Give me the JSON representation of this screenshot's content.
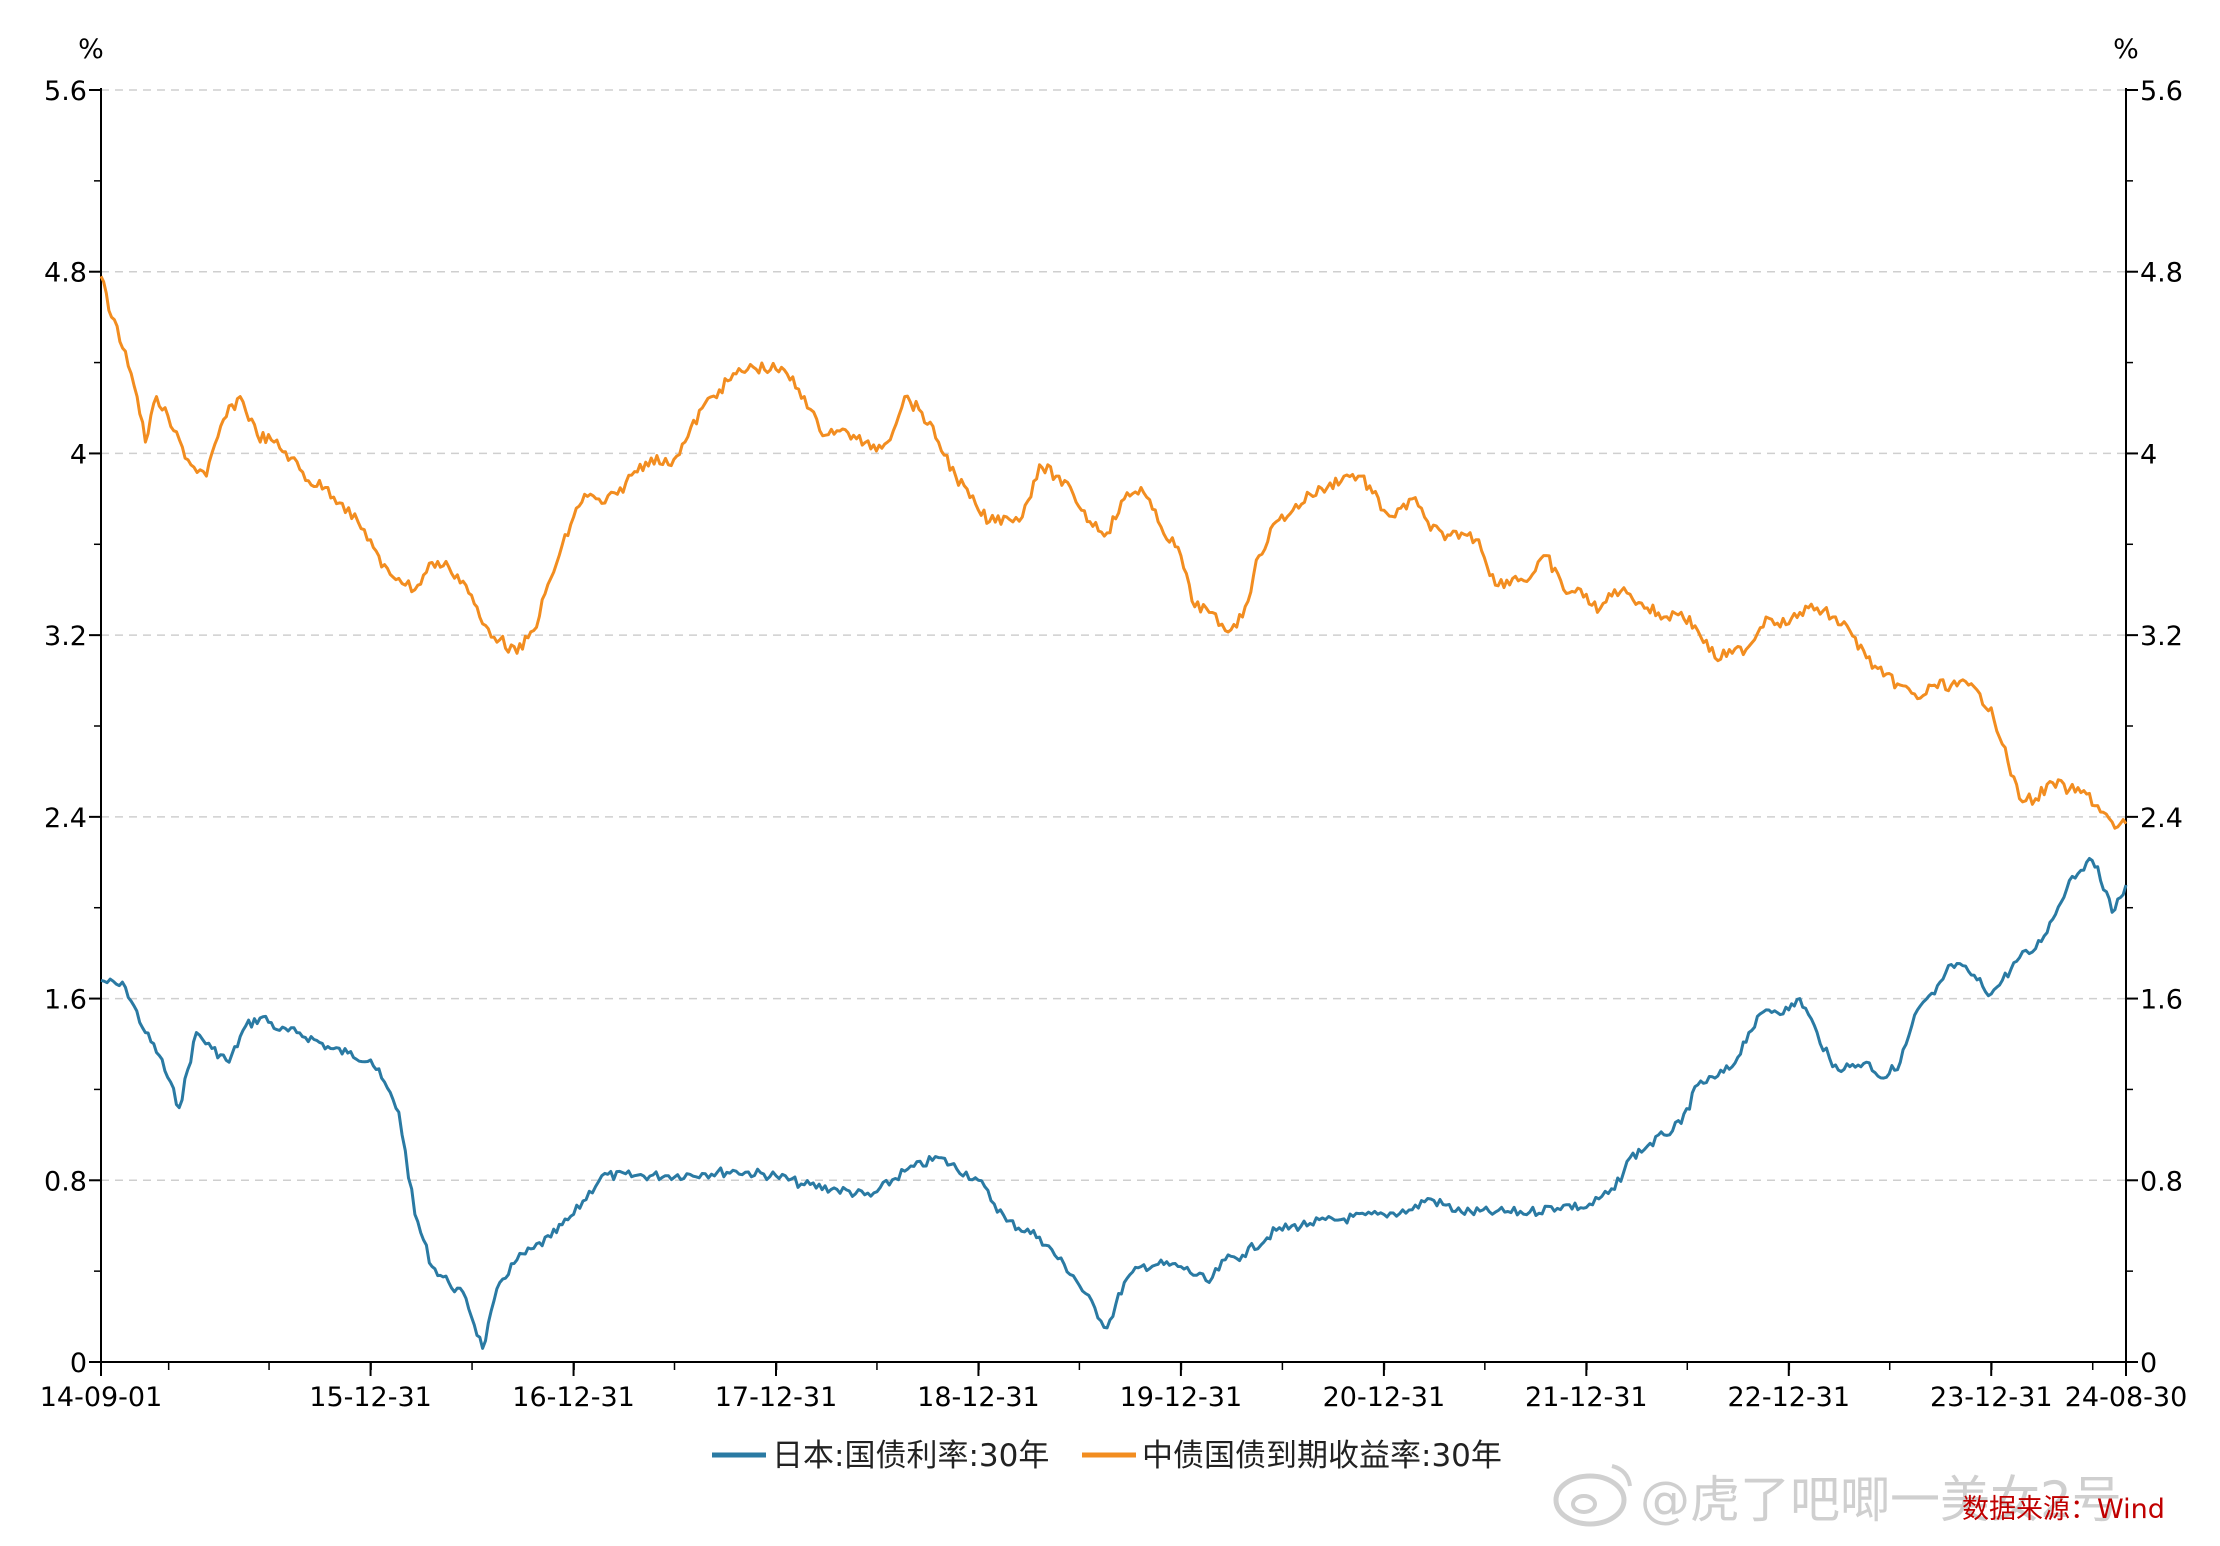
{
  "chart_data": {
    "type": "line",
    "y_unit_left": "%",
    "y_unit_right": "%",
    "ylim": [
      0,
      5.6
    ],
    "yticks": [
      0,
      0.8,
      1.6,
      2.4,
      3.2,
      4,
      4.8,
      5.6
    ],
    "ytick_labels": [
      "0",
      "0.8",
      "1.6",
      "2.4",
      "3.2",
      "4",
      "4.8",
      "5.6"
    ],
    "grid": true,
    "x_tick_labels": [
      "14-09-01",
      "15-12-31",
      "16-12-31",
      "17-12-31",
      "18-12-31",
      "19-12-31",
      "20-12-31",
      "21-12-31",
      "22-12-31",
      "23-12-31",
      "24-08-30"
    ],
    "x_tick_dates": [
      "2014-09-01",
      "2015-12-31",
      "2016-12-31",
      "2017-12-31",
      "2018-12-31",
      "2019-12-31",
      "2020-12-31",
      "2021-12-31",
      "2022-12-31",
      "2023-12-31",
      "2024-08-30"
    ],
    "xlim": [
      "2014-09-01",
      "2024-08-30"
    ],
    "legend_position": "bottom",
    "series": [
      {
        "name": "日本:国债利率:30年",
        "color": "#2a7aa3",
        "points": [
          [
            "2014-09-01",
            1.68
          ],
          [
            "2014-10-15",
            1.65
          ],
          [
            "2014-11-20",
            1.45
          ],
          [
            "2014-12-15",
            1.35
          ],
          [
            "2015-01-20",
            1.12
          ],
          [
            "2015-02-20",
            1.45
          ],
          [
            "2015-03-20",
            1.38
          ],
          [
            "2015-04-20",
            1.32
          ],
          [
            "2015-05-20",
            1.48
          ],
          [
            "2015-06-20",
            1.52
          ],
          [
            "2015-07-20",
            1.46
          ],
          [
            "2015-08-20",
            1.45
          ],
          [
            "2015-09-20",
            1.42
          ],
          [
            "2015-10-20",
            1.38
          ],
          [
            "2015-11-20",
            1.36
          ],
          [
            "2015-12-31",
            1.33
          ],
          [
            "2016-01-20",
            1.25
          ],
          [
            "2016-02-20",
            1.1
          ],
          [
            "2016-03-20",
            0.65
          ],
          [
            "2016-04-20",
            0.42
          ],
          [
            "2016-05-20",
            0.35
          ],
          [
            "2016-06-20",
            0.28
          ],
          [
            "2016-07-20",
            0.06
          ],
          [
            "2016-08-20",
            0.35
          ],
          [
            "2016-09-20",
            0.45
          ],
          [
            "2016-10-20",
            0.5
          ],
          [
            "2016-11-20",
            0.55
          ],
          [
            "2016-12-31",
            0.65
          ],
          [
            "2017-02-20",
            0.82
          ],
          [
            "2017-04-20",
            0.82
          ],
          [
            "2017-06-20",
            0.82
          ],
          [
            "2017-08-20",
            0.83
          ],
          [
            "2017-10-20",
            0.84
          ],
          [
            "2017-12-31",
            0.82
          ],
          [
            "2018-02-20",
            0.78
          ],
          [
            "2018-04-20",
            0.76
          ],
          [
            "2018-06-20",
            0.73
          ],
          [
            "2018-08-20",
            0.84
          ],
          [
            "2018-10-20",
            0.9
          ],
          [
            "2018-12-31",
            0.8
          ],
          [
            "2019-02-20",
            0.62
          ],
          [
            "2019-04-20",
            0.55
          ],
          [
            "2019-06-20",
            0.38
          ],
          [
            "2019-08-20",
            0.15
          ],
          [
            "2019-09-20",
            0.35
          ],
          [
            "2019-10-20",
            0.42
          ],
          [
            "2019-11-20",
            0.43
          ],
          [
            "2019-12-31",
            0.42
          ],
          [
            "2020-02-20",
            0.35
          ],
          [
            "2020-03-20",
            0.45
          ],
          [
            "2020-04-20",
            0.47
          ],
          [
            "2020-06-20",
            0.58
          ],
          [
            "2020-08-20",
            0.61
          ],
          [
            "2020-10-20",
            0.63
          ],
          [
            "2020-12-31",
            0.65
          ],
          [
            "2021-02-20",
            0.67
          ],
          [
            "2021-03-20",
            0.72
          ],
          [
            "2021-05-20",
            0.66
          ],
          [
            "2021-07-20",
            0.66
          ],
          [
            "2021-09-20",
            0.66
          ],
          [
            "2021-11-20",
            0.69
          ],
          [
            "2021-12-31",
            0.68
          ],
          [
            "2022-02-20",
            0.76
          ],
          [
            "2022-03-20",
            0.9
          ],
          [
            "2022-04-20",
            0.95
          ],
          [
            "2022-05-20",
            1.0
          ],
          [
            "2022-06-20",
            1.05
          ],
          [
            "2022-07-20",
            1.22
          ],
          [
            "2022-08-20",
            1.25
          ],
          [
            "2022-09-20",
            1.3
          ],
          [
            "2022-10-20",
            1.45
          ],
          [
            "2022-11-20",
            1.55
          ],
          [
            "2022-12-31",
            1.55
          ],
          [
            "2023-01-20",
            1.6
          ],
          [
            "2023-02-20",
            1.45
          ],
          [
            "2023-03-20",
            1.3
          ],
          [
            "2023-04-20",
            1.3
          ],
          [
            "2023-05-20",
            1.32
          ],
          [
            "2023-06-20",
            1.25
          ],
          [
            "2023-07-20",
            1.32
          ],
          [
            "2023-08-20",
            1.55
          ],
          [
            "2023-09-20",
            1.62
          ],
          [
            "2023-10-20",
            1.75
          ],
          [
            "2023-11-20",
            1.72
          ],
          [
            "2023-12-31",
            1.62
          ],
          [
            "2024-01-20",
            1.68
          ],
          [
            "2024-02-20",
            1.78
          ],
          [
            "2024-03-20",
            1.82
          ],
          [
            "2024-04-20",
            1.95
          ],
          [
            "2024-05-20",
            2.12
          ],
          [
            "2024-06-20",
            2.2
          ],
          [
            "2024-07-10",
            2.18
          ],
          [
            "2024-08-05",
            1.98
          ],
          [
            "2024-08-30",
            2.1
          ]
        ]
      },
      {
        "name": "中债国债到期收益率:30年",
        "color": "#f28d20",
        "points": [
          [
            "2014-09-01",
            4.78
          ],
          [
            "2014-09-20",
            4.6
          ],
          [
            "2014-10-15",
            4.45
          ],
          [
            "2014-11-05",
            4.25
          ],
          [
            "2014-11-20",
            4.05
          ],
          [
            "2014-12-10",
            4.25
          ],
          [
            "2015-01-10",
            4.1
          ],
          [
            "2015-02-10",
            3.95
          ],
          [
            "2015-03-10",
            3.9
          ],
          [
            "2015-04-10",
            4.15
          ],
          [
            "2015-05-10",
            4.25
          ],
          [
            "2015-06-10",
            4.08
          ],
          [
            "2015-07-10",
            4.05
          ],
          [
            "2015-08-10",
            3.98
          ],
          [
            "2015-09-10",
            3.88
          ],
          [
            "2015-10-10",
            3.85
          ],
          [
            "2015-11-10",
            3.78
          ],
          [
            "2015-12-31",
            3.62
          ],
          [
            "2016-01-20",
            3.5
          ],
          [
            "2016-02-20",
            3.45
          ],
          [
            "2016-03-20",
            3.4
          ],
          [
            "2016-04-20",
            3.52
          ],
          [
            "2016-05-20",
            3.5
          ],
          [
            "2016-06-20",
            3.42
          ],
          [
            "2016-07-20",
            3.25
          ],
          [
            "2016-08-20",
            3.18
          ],
          [
            "2016-09-20",
            3.12
          ],
          [
            "2016-10-20",
            3.22
          ],
          [
            "2016-11-20",
            3.45
          ],
          [
            "2016-12-31",
            3.72
          ],
          [
            "2017-01-20",
            3.82
          ],
          [
            "2017-02-20",
            3.78
          ],
          [
            "2017-03-20",
            3.82
          ],
          [
            "2017-04-20",
            3.92
          ],
          [
            "2017-05-20",
            3.98
          ],
          [
            "2017-06-20",
            3.95
          ],
          [
            "2017-07-20",
            4.05
          ],
          [
            "2017-08-20",
            4.2
          ],
          [
            "2017-09-20",
            4.28
          ],
          [
            "2017-10-20",
            4.35
          ],
          [
            "2017-11-20",
            4.38
          ],
          [
            "2017-12-31",
            4.37
          ],
          [
            "2018-01-20",
            4.35
          ],
          [
            "2018-02-20",
            4.25
          ],
          [
            "2018-03-20",
            4.1
          ],
          [
            "2018-04-20",
            4.1
          ],
          [
            "2018-05-20",
            4.08
          ],
          [
            "2018-06-20",
            4.02
          ],
          [
            "2018-07-20",
            4.05
          ],
          [
            "2018-08-20",
            4.25
          ],
          [
            "2018-09-20",
            4.18
          ],
          [
            "2018-10-20",
            4.05
          ],
          [
            "2018-11-20",
            3.9
          ],
          [
            "2018-12-31",
            3.75
          ],
          [
            "2019-01-20",
            3.7
          ],
          [
            "2019-02-20",
            3.72
          ],
          [
            "2019-03-20",
            3.72
          ],
          [
            "2019-04-20",
            3.95
          ],
          [
            "2019-05-20",
            3.9
          ],
          [
            "2019-06-20",
            3.82
          ],
          [
            "2019-07-20",
            3.7
          ],
          [
            "2019-08-20",
            3.65
          ],
          [
            "2019-09-20",
            3.8
          ],
          [
            "2019-10-20",
            3.85
          ],
          [
            "2019-11-20",
            3.7
          ],
          [
            "2019-12-31",
            3.55
          ],
          [
            "2020-01-20",
            3.35
          ],
          [
            "2020-02-20",
            3.3
          ],
          [
            "2020-03-20",
            3.22
          ],
          [
            "2020-04-20",
            3.28
          ],
          [
            "2020-05-20",
            3.55
          ],
          [
            "2020-06-20",
            3.7
          ],
          [
            "2020-07-20",
            3.75
          ],
          [
            "2020-08-20",
            3.82
          ],
          [
            "2020-09-20",
            3.85
          ],
          [
            "2020-10-20",
            3.9
          ],
          [
            "2020-11-20",
            3.9
          ],
          [
            "2020-12-31",
            3.75
          ],
          [
            "2021-01-20",
            3.72
          ],
          [
            "2021-02-20",
            3.8
          ],
          [
            "2021-03-20",
            3.7
          ],
          [
            "2021-04-20",
            3.62
          ],
          [
            "2021-05-20",
            3.65
          ],
          [
            "2021-06-20",
            3.62
          ],
          [
            "2021-07-20",
            3.42
          ],
          [
            "2021-08-20",
            3.45
          ],
          [
            "2021-09-20",
            3.45
          ],
          [
            "2021-10-20",
            3.55
          ],
          [
            "2021-11-20",
            3.4
          ],
          [
            "2021-12-31",
            3.38
          ],
          [
            "2022-01-20",
            3.3
          ],
          [
            "2022-02-20",
            3.4
          ],
          [
            "2022-03-20",
            3.38
          ],
          [
            "2022-04-20",
            3.32
          ],
          [
            "2022-05-20",
            3.28
          ],
          [
            "2022-06-20",
            3.3
          ],
          [
            "2022-07-20",
            3.22
          ],
          [
            "2022-08-20",
            3.1
          ],
          [
            "2022-09-20",
            3.12
          ],
          [
            "2022-10-20",
            3.15
          ],
          [
            "2022-11-20",
            3.28
          ],
          [
            "2022-12-31",
            3.25
          ],
          [
            "2023-01-20",
            3.3
          ],
          [
            "2023-02-20",
            3.32
          ],
          [
            "2023-03-20",
            3.28
          ],
          [
            "2023-04-20",
            3.22
          ],
          [
            "2023-05-20",
            3.1
          ],
          [
            "2023-06-20",
            3.02
          ],
          [
            "2023-07-20",
            2.98
          ],
          [
            "2023-08-20",
            2.92
          ],
          [
            "2023-09-20",
            2.98
          ],
          [
            "2023-10-20",
            2.98
          ],
          [
            "2023-11-20",
            2.98
          ],
          [
            "2023-12-31",
            2.88
          ],
          [
            "2024-01-20",
            2.72
          ],
          [
            "2024-02-20",
            2.48
          ],
          [
            "2024-03-20",
            2.48
          ],
          [
            "2024-04-20",
            2.55
          ],
          [
            "2024-05-20",
            2.52
          ],
          [
            "2024-06-20",
            2.5
          ],
          [
            "2024-07-20",
            2.42
          ],
          [
            "2024-08-10",
            2.35
          ],
          [
            "2024-08-30",
            2.37
          ]
        ]
      }
    ]
  },
  "annotations": {
    "source": "数据来源：Wind",
    "watermark": "@虎了吧唧一美女2号"
  }
}
